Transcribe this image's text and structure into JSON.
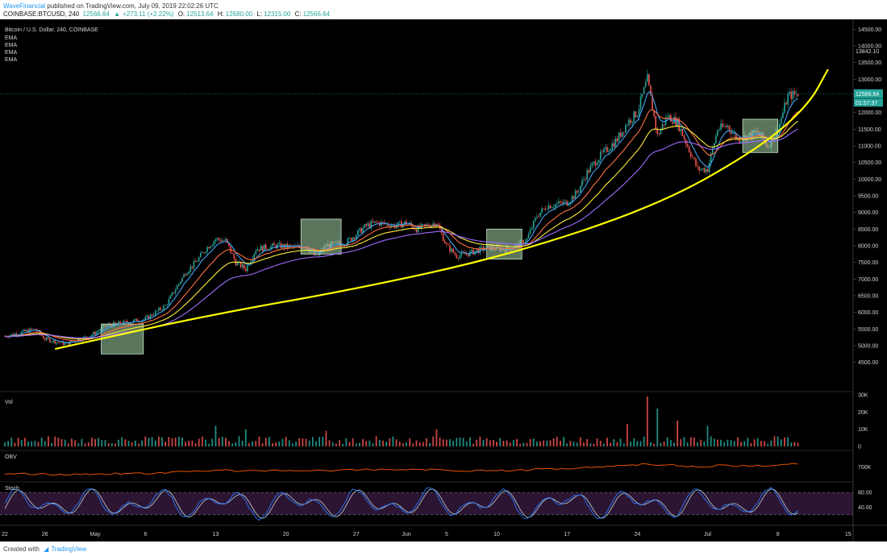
{
  "header": {
    "author": "WaveFinancial",
    "published_text": "published on TradingView.com, July 09, 2019 22:02:26 UTC",
    "symbol": "COINBASE:BTCUSD, 240",
    "last": "12566.64",
    "change": "+273.11 (+2.22%)",
    "o_label": "O:",
    "o": "12513.64",
    "h_label": "H:",
    "h": "12680.00",
    "l_label": "L:",
    "l": "12315.00",
    "c_label": "C:",
    "c": "12566.64"
  },
  "legend": {
    "title": "Bitcoin / U.S. Dollar, 240, COINBASE",
    "indicators": [
      "EMA",
      "EMA",
      "EMA",
      "EMA"
    ]
  },
  "price_labels": {
    "current": "12566.64",
    "countdown": "01:57:37",
    "high": "13842.10"
  },
  "panes": {
    "volume": "Vol",
    "obv": "OBV",
    "stoch": "Stoch"
  },
  "footer": {
    "created_with": "Created with",
    "brand": "TradingView"
  },
  "colors": {
    "background": "#000000",
    "up": "#26a69a",
    "down": "#ef5350",
    "ema_fast": "#42a5f5",
    "ema_mid": "#ff7043",
    "ema_slow": "#ffeb3b",
    "ema_long": "#9c6bff",
    "trend_curve": "#ffff00",
    "boxes": "#a5d6a7",
    "obv": "#e65100",
    "stoch_k": "#2979ff",
    "stoch_d": "#b0bec5",
    "stoch_band": "#2c1533"
  },
  "chart_data": [
    {
      "type": "candlestick",
      "title": "Bitcoin / U.S. Dollar, 240, COINBASE",
      "ylim": [
        4200,
        14800
      ],
      "yticks": [
        4500,
        5000,
        5500,
        6000,
        6500,
        7000,
        7500,
        8000,
        8500,
        9000,
        9500,
        10000,
        10500,
        11000,
        11500,
        12000,
        12500,
        13000,
        13500,
        14000,
        14500
      ],
      "ytick_labels": [
        "4500.00",
        "5000.00",
        "5500.00",
        "6000.00",
        "6500.00",
        "7000.00",
        "7500.00",
        "8000.00",
        "8500.00",
        "9000.00",
        "9500.00",
        "10000.00",
        "10500.00",
        "11000.00",
        "11500.00",
        "12000.00",
        "12500.00",
        "13000.00",
        "13500.00",
        "14000.00",
        "14500.00"
      ],
      "xticks": [
        "22",
        "26",
        "May",
        "6",
        "13",
        "20",
        "27",
        "Jun",
        "5",
        "10",
        "17",
        "24",
        "Jul",
        "8",
        "15"
      ],
      "xtick_days": [
        0,
        4,
        9,
        14,
        21,
        28,
        35,
        40,
        44,
        49,
        56,
        63,
        70,
        77,
        84
      ],
      "price_path": [
        [
          0,
          5280
        ],
        [
          3,
          5500
        ],
        [
          4,
          5200
        ],
        [
          6,
          5050
        ],
        [
          8,
          5250
        ],
        [
          9,
          5380
        ],
        [
          10,
          5600
        ],
        [
          14,
          5800
        ],
        [
          16,
          6200
        ],
        [
          18,
          7200
        ],
        [
          19,
          7500
        ],
        [
          20,
          7900
        ],
        [
          21,
          8200
        ],
        [
          22,
          8150
        ],
        [
          23,
          7500
        ],
        [
          24,
          7300
        ],
        [
          25,
          7900
        ],
        [
          27,
          8000
        ],
        [
          29,
          7950
        ],
        [
          30,
          8000
        ],
        [
          31,
          7650
        ],
        [
          32,
          8000
        ],
        [
          34,
          8100
        ],
        [
          36,
          8600
        ],
        [
          37,
          8700
        ],
        [
          39,
          8600
        ],
        [
          40,
          8700
        ],
        [
          41,
          8500
        ],
        [
          42,
          8600
        ],
        [
          43,
          8700
        ],
        [
          44,
          8000
        ],
        [
          45,
          7700
        ],
        [
          46,
          7750
        ],
        [
          48,
          7950
        ],
        [
          50,
          7900
        ],
        [
          51,
          8000
        ],
        [
          52,
          8200
        ],
        [
          53,
          8900
        ],
        [
          54,
          9200
        ],
        [
          56,
          9300
        ],
        [
          57,
          9600
        ],
        [
          58,
          10200
        ],
        [
          59,
          10600
        ],
        [
          60,
          10900
        ],
        [
          61,
          11200
        ],
        [
          62,
          11700
        ],
        [
          63,
          12000
        ],
        [
          64,
          13000
        ],
        [
          65,
          11300
        ],
        [
          66,
          11900
        ],
        [
          67,
          11700
        ],
        [
          68,
          11000
        ],
        [
          69,
          10300
        ],
        [
          70,
          10300
        ],
        [
          71,
          11500
        ],
        [
          72,
          11600
        ],
        [
          73,
          11200
        ],
        [
          75,
          11400
        ],
        [
          76,
          11000
        ],
        [
          77,
          11500
        ],
        [
          78,
          12500
        ],
        [
          79,
          12566
        ]
      ],
      "trend_curve": [
        [
          5,
          4900
        ],
        [
          20,
          5900
        ],
        [
          35,
          6700
        ],
        [
          50,
          7700
        ],
        [
          65,
          9200
        ],
        [
          75,
          10900
        ],
        [
          80,
          12200
        ],
        [
          82,
          13300
        ]
      ],
      "boxes": [
        {
          "x": [
            9.6,
            13.8
          ],
          "y": [
            4750,
            5650
          ]
        },
        {
          "x": [
            29.5,
            33.5
          ],
          "y": [
            7750,
            8800
          ]
        },
        {
          "x": [
            48.0,
            51.5
          ],
          "y": [
            7600,
            8500
          ]
        },
        {
          "x": [
            73.5,
            77.0
          ],
          "y": [
            10800,
            11800
          ]
        }
      ],
      "last_price": 12566.64,
      "high_label": 13842.1
    },
    {
      "type": "bar",
      "title": "Vol",
      "ylim": [
        0,
        30000
      ],
      "yticks": [
        0,
        10000,
        20000,
        30000
      ],
      "ytick_labels": [
        "0",
        "10K",
        "20K",
        "30K"
      ],
      "spikes": [
        [
          21,
          12000
        ],
        [
          24,
          10000
        ],
        [
          32,
          9000
        ],
        [
          43,
          10000
        ],
        [
          62,
          13000
        ],
        [
          64,
          29000
        ],
        [
          65,
          22000
        ],
        [
          67,
          15000
        ],
        [
          70,
          12000
        ]
      ]
    },
    {
      "type": "line",
      "title": "OBV",
      "ytick_labels": [
        "700K"
      ]
    },
    {
      "type": "line",
      "title": "Stoch",
      "ylim": [
        0,
        100
      ],
      "yticks": [
        80,
        40
      ],
      "ytick_labels": [
        "80.00",
        "40.00"
      ],
      "bands": [
        20,
        80
      ]
    }
  ]
}
